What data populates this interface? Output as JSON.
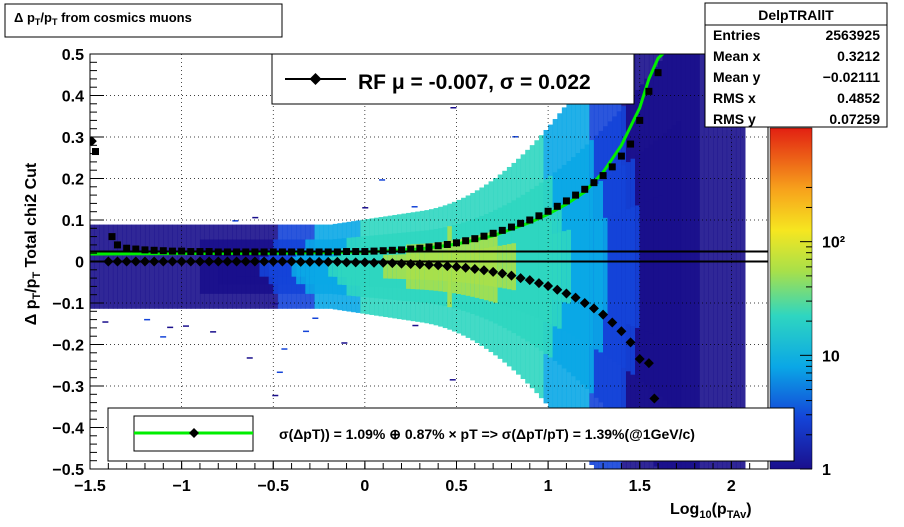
{
  "chart_data": {
    "type": "heatmap",
    "title": "Δ p_T/p_T from cosmics muons",
    "xlabel": "Log10(pTAv)",
    "ylabel": "Δ p_T/p_T Total chi2 Cut",
    "xlim": [
      -1.5,
      2.2
    ],
    "ylim": [
      -0.5,
      0.5
    ],
    "grid": true,
    "x_ticks": [
      "−1.5",
      "−1",
      "−0.5",
      "0",
      "0.5",
      "1",
      "1.5",
      "2"
    ],
    "y_ticks": [
      "0.5",
      "0.4",
      "0.3",
      "0.2",
      "0.1",
      "0",
      "−0.1",
      "−0.2",
      "−0.3",
      "−0.4",
      "−0.5"
    ],
    "color_scale": {
      "type": "log",
      "range": [
        1,
        1000
      ],
      "ticks": [
        "1",
        "10",
        "10²"
      ]
    },
    "stats_box": {
      "title": "DelpTRAllT",
      "rows": [
        {
          "label": "Entries",
          "value": "2563925"
        },
        {
          "label": "Mean x",
          "value": "0.3212"
        },
        {
          "label": "Mean y",
          "value": "−0.02111"
        },
        {
          "label": "RMS x",
          "value": "0.4852"
        },
        {
          "label": "RMS y",
          "value": "0.07259"
        }
      ]
    },
    "legend_top": {
      "text": "RF μ = -0.007, σ =   0.022",
      "placement": "top-center"
    },
    "legend_bottom": {
      "text": "σ(ΔpT)) =  1.09% ⊕  0.87% × pT => σ(ΔpT/pT) =  1.39%(@1GeV/c)",
      "placement": "bottom"
    },
    "series": [
      {
        "name": "sigma_points",
        "marker": "square",
        "color": "#000000",
        "points": [
          [
            -1.47,
            0.265
          ],
          [
            -1.38,
            0.06
          ],
          [
            -1.35,
            0.04
          ],
          [
            -1.3,
            0.032
          ],
          [
            -1.25,
            0.03
          ],
          [
            -1.2,
            0.028
          ],
          [
            -1.15,
            0.027
          ],
          [
            -1.1,
            0.026
          ],
          [
            -1.05,
            0.025
          ],
          [
            -1.0,
            0.025
          ],
          [
            -0.95,
            0.024
          ],
          [
            -0.9,
            0.024
          ],
          [
            -0.85,
            0.024
          ],
          [
            -0.8,
            0.023
          ],
          [
            -0.75,
            0.023
          ],
          [
            -0.7,
            0.023
          ],
          [
            -0.65,
            0.023
          ],
          [
            -0.6,
            0.023
          ],
          [
            -0.55,
            0.023
          ],
          [
            -0.5,
            0.023
          ],
          [
            -0.45,
            0.023
          ],
          [
            -0.4,
            0.023
          ],
          [
            -0.35,
            0.023
          ],
          [
            -0.3,
            0.023
          ],
          [
            -0.25,
            0.023
          ],
          [
            -0.2,
            0.023
          ],
          [
            -0.15,
            0.023
          ],
          [
            -0.1,
            0.024
          ],
          [
            -0.05,
            0.024
          ],
          [
            0.0,
            0.024
          ],
          [
            0.05,
            0.025
          ],
          [
            0.1,
            0.026
          ],
          [
            0.15,
            0.027
          ],
          [
            0.2,
            0.028
          ],
          [
            0.25,
            0.03
          ],
          [
            0.3,
            0.032
          ],
          [
            0.35,
            0.035
          ],
          [
            0.4,
            0.038
          ],
          [
            0.45,
            0.041
          ],
          [
            0.5,
            0.045
          ],
          [
            0.55,
            0.05
          ],
          [
            0.6,
            0.055
          ],
          [
            0.65,
            0.061
          ],
          [
            0.7,
            0.068
          ],
          [
            0.75,
            0.075
          ],
          [
            0.8,
            0.083
          ],
          [
            0.85,
            0.092
          ],
          [
            0.9,
            0.1
          ],
          [
            0.95,
            0.11
          ],
          [
            1.0,
            0.121
          ],
          [
            1.05,
            0.133
          ],
          [
            1.1,
            0.146
          ],
          [
            1.15,
            0.16
          ],
          [
            1.2,
            0.174
          ],
          [
            1.25,
            0.19
          ],
          [
            1.3,
            0.207
          ],
          [
            1.35,
            0.228
          ],
          [
            1.4,
            0.254
          ],
          [
            1.45,
            0.283
          ],
          [
            1.5,
            0.34
          ],
          [
            1.55,
            0.41
          ],
          [
            1.6,
            0.455
          ]
        ]
      },
      {
        "name": "mean_points",
        "marker": "diamond",
        "color": "#000000",
        "points": [
          [
            -1.49,
            0.29
          ],
          [
            -1.4,
            0.0
          ],
          [
            -1.35,
            -0.0
          ],
          [
            -1.3,
            0.0
          ],
          [
            -1.25,
            0.0
          ],
          [
            -1.2,
            0.0
          ],
          [
            -1.15,
            0.0
          ],
          [
            -1.1,
            0.0
          ],
          [
            -1.05,
            0.0
          ],
          [
            -1.0,
            0.0
          ],
          [
            -0.95,
            0.0
          ],
          [
            -0.9,
            0.0
          ],
          [
            -0.85,
            0.0
          ],
          [
            -0.8,
            0.0
          ],
          [
            -0.75,
            0.0
          ],
          [
            -0.7,
            0.0
          ],
          [
            -0.65,
            0.0
          ],
          [
            -0.6,
            0.0
          ],
          [
            -0.55,
            0.0
          ],
          [
            -0.5,
            0.0
          ],
          [
            -0.45,
            0.0
          ],
          [
            -0.4,
            0.0
          ],
          [
            -0.35,
            -0.001
          ],
          [
            -0.3,
            -0.001
          ],
          [
            -0.25,
            -0.001
          ],
          [
            -0.2,
            -0.001
          ],
          [
            -0.15,
            -0.001
          ],
          [
            -0.1,
            -0.002
          ],
          [
            -0.05,
            -0.002
          ],
          [
            0.0,
            -0.002
          ],
          [
            0.05,
            -0.003
          ],
          [
            0.1,
            -0.003
          ],
          [
            0.15,
            -0.004
          ],
          [
            0.2,
            -0.005
          ],
          [
            0.25,
            -0.006
          ],
          [
            0.3,
            -0.007
          ],
          [
            0.35,
            -0.008
          ],
          [
            0.4,
            -0.009
          ],
          [
            0.45,
            -0.011
          ],
          [
            0.5,
            -0.013
          ],
          [
            0.55,
            -0.015
          ],
          [
            0.6,
            -0.018
          ],
          [
            0.65,
            -0.021
          ],
          [
            0.7,
            -0.025
          ],
          [
            0.75,
            -0.029
          ],
          [
            0.8,
            -0.034
          ],
          [
            0.85,
            -0.04
          ],
          [
            0.9,
            -0.045
          ],
          [
            0.95,
            -0.052
          ],
          [
            1.0,
            -0.059
          ],
          [
            1.05,
            -0.068
          ],
          [
            1.1,
            -0.077
          ],
          [
            1.15,
            -0.087
          ],
          [
            1.2,
            -0.1
          ],
          [
            1.25,
            -0.113
          ],
          [
            1.3,
            -0.128
          ],
          [
            1.35,
            -0.147
          ],
          [
            1.4,
            -0.168
          ],
          [
            1.45,
            -0.195
          ],
          [
            1.5,
            -0.235
          ],
          [
            1.55,
            -0.245
          ],
          [
            1.58,
            -0.33
          ]
        ]
      },
      {
        "name": "fit_curve",
        "color": "#00ee00",
        "style": "line",
        "points": [
          [
            -1.5,
            0.018
          ],
          [
            -1.0,
            0.019
          ],
          [
            -0.5,
            0.02
          ],
          [
            0.0,
            0.023
          ],
          [
            0.3,
            0.03
          ],
          [
            0.5,
            0.042
          ],
          [
            0.7,
            0.062
          ],
          [
            0.9,
            0.094
          ],
          [
            1.0,
            0.114
          ],
          [
            1.1,
            0.138
          ],
          [
            1.2,
            0.168
          ],
          [
            1.3,
            0.215
          ],
          [
            1.4,
            0.28
          ],
          [
            1.5,
            0.37
          ],
          [
            1.55,
            0.44
          ],
          [
            1.6,
            0.49
          ],
          [
            1.65,
            0.51
          ]
        ]
      },
      {
        "name": "mean_line",
        "color": "#000000",
        "style": "line",
        "points": [
          [
            -1.5,
            0.0
          ],
          [
            2.2,
            0.0
          ]
        ]
      },
      {
        "name": "sigma_line",
        "color": "#000000",
        "style": "line",
        "points": [
          [
            -1.5,
            0.024
          ],
          [
            2.2,
            0.024
          ]
        ]
      }
    ]
  }
}
